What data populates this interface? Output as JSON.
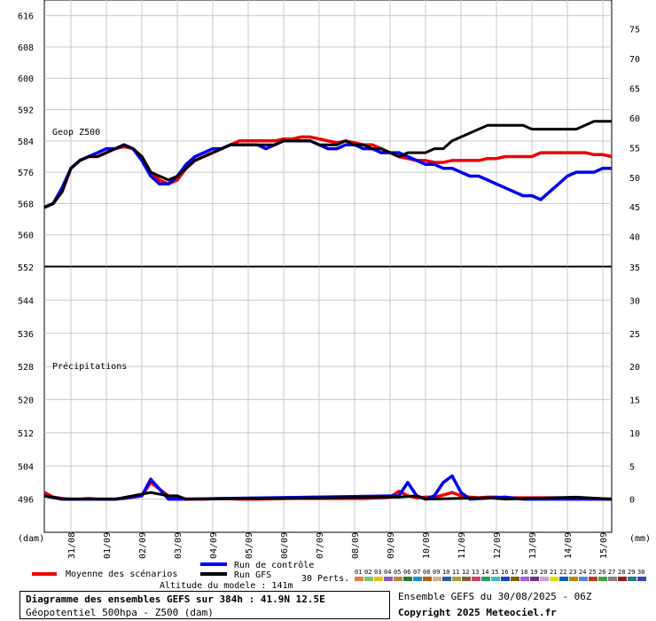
{
  "chart_data": {
    "type": "line",
    "panels": [
      {
        "label": "Geop Z500",
        "yleft_ticks": [
          616,
          608,
          600,
          592,
          584,
          576,
          568,
          560
        ],
        "yleft_range": [
          552,
          620
        ],
        "yright_ticks": [
          75,
          70,
          65,
          60,
          55,
          50,
          45,
          40
        ],
        "yright_range": [
          35,
          79.9
        ]
      },
      {
        "label": "Précipitations",
        "yleft_ticks": [
          552,
          544,
          536,
          528,
          520,
          512,
          504,
          496
        ],
        "yleft_range": [
          488,
          552
        ],
        "yright_ticks": [
          35,
          30,
          25,
          20,
          15,
          10,
          5,
          0
        ],
        "yright_range": [
          -5,
          35
        ]
      }
    ],
    "yleft_unit": "(dam)",
    "yright_unit": "(mm)",
    "x_ticks": [
      "31/08",
      "01/09",
      "02/09",
      "03/09",
      "04/09",
      "05/09",
      "06/09",
      "07/09",
      "08/09",
      "09/09",
      "10/09",
      "11/09",
      "12/09",
      "13/09",
      "14/09",
      "15/09"
    ],
    "x_range_hours": [
      0,
      384
    ],
    "series": [
      {
        "name": "Moyenne des scénarios",
        "color": "#ee0000",
        "z500": [
          [
            0,
            567
          ],
          [
            6,
            568
          ],
          [
            12,
            571
          ],
          [
            18,
            577
          ],
          [
            24,
            579
          ],
          [
            30,
            580
          ],
          [
            36,
            580
          ],
          [
            42,
            581
          ],
          [
            48,
            582
          ],
          [
            54,
            582.5
          ],
          [
            60,
            582
          ],
          [
            66,
            580
          ],
          [
            72,
            576
          ],
          [
            78,
            574
          ],
          [
            84,
            573
          ],
          [
            90,
            574
          ],
          [
            96,
            577
          ],
          [
            102,
            579
          ],
          [
            108,
            580
          ],
          [
            114,
            581
          ],
          [
            120,
            582
          ],
          [
            126,
            583
          ],
          [
            132,
            584
          ],
          [
            138,
            584
          ],
          [
            144,
            584
          ],
          [
            150,
            584
          ],
          [
            156,
            584
          ],
          [
            162,
            584.5
          ],
          [
            168,
            584.5
          ],
          [
            174,
            585
          ],
          [
            180,
            585
          ],
          [
            186,
            584.5
          ],
          [
            192,
            584
          ],
          [
            198,
            583.5
          ],
          [
            204,
            584
          ],
          [
            210,
            583.5
          ],
          [
            216,
            583
          ],
          [
            222,
            583
          ],
          [
            228,
            582
          ],
          [
            234,
            581
          ],
          [
            240,
            580
          ],
          [
            246,
            579.5
          ],
          [
            252,
            579
          ],
          [
            258,
            579
          ],
          [
            264,
            578.5
          ],
          [
            270,
            578.5
          ],
          [
            276,
            579
          ],
          [
            282,
            579
          ],
          [
            288,
            579
          ],
          [
            294,
            579
          ],
          [
            300,
            579.5
          ],
          [
            306,
            579.5
          ],
          [
            312,
            580
          ],
          [
            318,
            580
          ],
          [
            324,
            580
          ],
          [
            330,
            580
          ],
          [
            336,
            581
          ],
          [
            342,
            581
          ],
          [
            348,
            581
          ],
          [
            354,
            581
          ],
          [
            360,
            581
          ],
          [
            366,
            581
          ],
          [
            372,
            580.5
          ],
          [
            378,
            580.5
          ],
          [
            384,
            580
          ]
        ],
        "precip": [
          [
            0,
            1
          ],
          [
            6,
            0.3
          ],
          [
            12,
            0.1
          ],
          [
            18,
            0
          ],
          [
            24,
            0
          ],
          [
            30,
            0.1
          ],
          [
            36,
            0
          ],
          [
            42,
            0
          ],
          [
            48,
            0
          ],
          [
            54,
            0.1
          ],
          [
            66,
            0.5
          ],
          [
            72,
            2.5
          ],
          [
            78,
            1.5
          ],
          [
            84,
            0.5
          ],
          [
            90,
            0.1
          ],
          [
            96,
            0
          ],
          [
            108,
            0
          ],
          [
            120,
            0.1
          ],
          [
            132,
            0
          ],
          [
            144,
            0
          ],
          [
            168,
            0.1
          ],
          [
            192,
            0.1
          ],
          [
            216,
            0.1
          ],
          [
            228,
            0.2
          ],
          [
            234,
            0.3
          ],
          [
            240,
            1.2
          ],
          [
            246,
            0.5
          ],
          [
            252,
            0.2
          ],
          [
            258,
            0.3
          ],
          [
            264,
            0.3
          ],
          [
            270,
            0.6
          ],
          [
            276,
            1
          ],
          [
            282,
            0.5
          ],
          [
            288,
            0.3
          ],
          [
            294,
            0.2
          ],
          [
            300,
            0.3
          ],
          [
            306,
            0.3
          ],
          [
            312,
            0.2
          ],
          [
            324,
            0.2
          ],
          [
            336,
            0.2
          ],
          [
            348,
            0.2
          ],
          [
            360,
            0.1
          ],
          [
            372,
            0.1
          ],
          [
            384,
            0
          ]
        ]
      },
      {
        "name": "Run de contrôle",
        "color": "#0000ee",
        "z500": [
          [
            0,
            567
          ],
          [
            6,
            568
          ],
          [
            12,
            572
          ],
          [
            18,
            577
          ],
          [
            24,
            579
          ],
          [
            30,
            580
          ],
          [
            36,
            581
          ],
          [
            42,
            582
          ],
          [
            48,
            582
          ],
          [
            54,
            583
          ],
          [
            60,
            582
          ],
          [
            66,
            579
          ],
          [
            72,
            575
          ],
          [
            78,
            573
          ],
          [
            84,
            573
          ],
          [
            90,
            575
          ],
          [
            96,
            578
          ],
          [
            102,
            580
          ],
          [
            108,
            581
          ],
          [
            114,
            582
          ],
          [
            120,
            582
          ],
          [
            126,
            583
          ],
          [
            132,
            583
          ],
          [
            138,
            583
          ],
          [
            144,
            583
          ],
          [
            150,
            582
          ],
          [
            156,
            583
          ],
          [
            162,
            584
          ],
          [
            168,
            584
          ],
          [
            174,
            584
          ],
          [
            180,
            584
          ],
          [
            186,
            583
          ],
          [
            192,
            582
          ],
          [
            198,
            582
          ],
          [
            204,
            583
          ],
          [
            210,
            583
          ],
          [
            216,
            582
          ],
          [
            222,
            582
          ],
          [
            228,
            581
          ],
          [
            234,
            581
          ],
          [
            240,
            581
          ],
          [
            246,
            580
          ],
          [
            252,
            579
          ],
          [
            258,
            578
          ],
          [
            264,
            578
          ],
          [
            270,
            577
          ],
          [
            276,
            577
          ],
          [
            282,
            576
          ],
          [
            288,
            575
          ],
          [
            294,
            575
          ],
          [
            300,
            574
          ],
          [
            306,
            573
          ],
          [
            312,
            572
          ],
          [
            318,
            571
          ],
          [
            324,
            570
          ],
          [
            330,
            570
          ],
          [
            336,
            569
          ],
          [
            342,
            571
          ],
          [
            348,
            573
          ],
          [
            354,
            575
          ],
          [
            360,
            576
          ],
          [
            366,
            576
          ],
          [
            372,
            576
          ],
          [
            378,
            577
          ],
          [
            384,
            577
          ]
        ],
        "precip": [
          [
            0,
            0.5
          ],
          [
            12,
            0
          ],
          [
            48,
            0
          ],
          [
            66,
            0.5
          ],
          [
            72,
            3
          ],
          [
            78,
            1.5
          ],
          [
            84,
            0
          ],
          [
            96,
            0
          ],
          [
            240,
            0.5
          ],
          [
            246,
            2.5
          ],
          [
            252,
            0.5
          ],
          [
            258,
            0
          ],
          [
            264,
            0.5
          ],
          [
            270,
            2.5
          ],
          [
            276,
            3.5
          ],
          [
            282,
            1
          ],
          [
            288,
            0
          ],
          [
            312,
            0.3
          ],
          [
            324,
            0
          ],
          [
            384,
            0
          ]
        ]
      },
      {
        "name": "Run GFS",
        "color": "#000000",
        "z500": [
          [
            0,
            567
          ],
          [
            6,
            568
          ],
          [
            12,
            571
          ],
          [
            18,
            577
          ],
          [
            24,
            579
          ],
          [
            30,
            580
          ],
          [
            36,
            580
          ],
          [
            42,
            581
          ],
          [
            48,
            582
          ],
          [
            54,
            583
          ],
          [
            60,
            582
          ],
          [
            66,
            580
          ],
          [
            72,
            576
          ],
          [
            78,
            575
          ],
          [
            84,
            574
          ],
          [
            90,
            575
          ],
          [
            96,
            577
          ],
          [
            102,
            579
          ],
          [
            108,
            580
          ],
          [
            114,
            581
          ],
          [
            120,
            582
          ],
          [
            126,
            583
          ],
          [
            132,
            583
          ],
          [
            138,
            583
          ],
          [
            144,
            583
          ],
          [
            150,
            583
          ],
          [
            156,
            583
          ],
          [
            162,
            584
          ],
          [
            168,
            584
          ],
          [
            174,
            584
          ],
          [
            180,
            584
          ],
          [
            186,
            583
          ],
          [
            192,
            583
          ],
          [
            198,
            583
          ],
          [
            204,
            584
          ],
          [
            210,
            583
          ],
          [
            216,
            583
          ],
          [
            222,
            582
          ],
          [
            228,
            582
          ],
          [
            234,
            581
          ],
          [
            240,
            580
          ],
          [
            246,
            581
          ],
          [
            252,
            581
          ],
          [
            258,
            581
          ],
          [
            264,
            582
          ],
          [
            270,
            582
          ],
          [
            276,
            584
          ],
          [
            282,
            585
          ],
          [
            288,
            586
          ],
          [
            294,
            587
          ],
          [
            300,
            588
          ],
          [
            306,
            588
          ],
          [
            312,
            588
          ],
          [
            318,
            588
          ],
          [
            324,
            588
          ],
          [
            330,
            587
          ],
          [
            336,
            587
          ],
          [
            342,
            587
          ],
          [
            348,
            587
          ],
          [
            354,
            587
          ],
          [
            360,
            587
          ],
          [
            366,
            588
          ],
          [
            372,
            589
          ],
          [
            378,
            589
          ],
          [
            384,
            589
          ]
        ],
        "precip": [
          [
            0,
            0.5
          ],
          [
            12,
            0
          ],
          [
            48,
            0
          ],
          [
            72,
            1
          ],
          [
            84,
            0.5
          ],
          [
            90,
            0.5
          ],
          [
            96,
            0
          ],
          [
            240,
            0.3
          ],
          [
            252,
            0.5
          ],
          [
            258,
            0
          ],
          [
            300,
            0.2
          ],
          [
            312,
            0
          ],
          [
            360,
            0.3
          ],
          [
            384,
            0
          ]
        ]
      }
    ],
    "perturbations": {
      "label": "30 Perts.",
      "codes": [
        "01",
        "02",
        "03",
        "04",
        "05",
        "06",
        "07",
        "08",
        "09",
        "10",
        "11",
        "12",
        "13",
        "14",
        "15",
        "16",
        "17",
        "18",
        "19",
        "20",
        "21",
        "22",
        "23",
        "24",
        "25",
        "26",
        "27",
        "28",
        "29",
        "30"
      ],
      "colors": [
        "#e08040",
        "#80c070",
        "#e0c020",
        "#8060b0",
        "#c08040",
        "#208020",
        "#2090d0",
        "#b06020",
        "#d0b080",
        "#2060a0",
        "#a0a040",
        "#806040",
        "#d04060",
        "#20a060",
        "#40c0c0",
        "#2040c0",
        "#806000",
        "#a060e0",
        "#703080",
        "#d0a0d0",
        "#e0e000",
        "#0060c0",
        "#b09000",
        "#6080e0",
        "#c03030",
        "#40a040",
        "#808080",
        "#902020",
        "#208080",
        "#4040c0"
      ]
    }
  },
  "legend": {
    "mean": "Moyenne des scénarios",
    "control": "Run de contrôle",
    "gfs": "Run GFS",
    "altitude": "Altitude du modele : 141m"
  },
  "info": {
    "line1": "Diagramme des ensembles GEFS sur 384h : 41.9N 12.5E",
    "line2": "Géopotentiel 500hpa - Z500 (dam)",
    "run": "Ensemble GEFS du 30/08/2025 - 06Z",
    "copyright": "Copyright 2025 Meteociel.fr"
  }
}
